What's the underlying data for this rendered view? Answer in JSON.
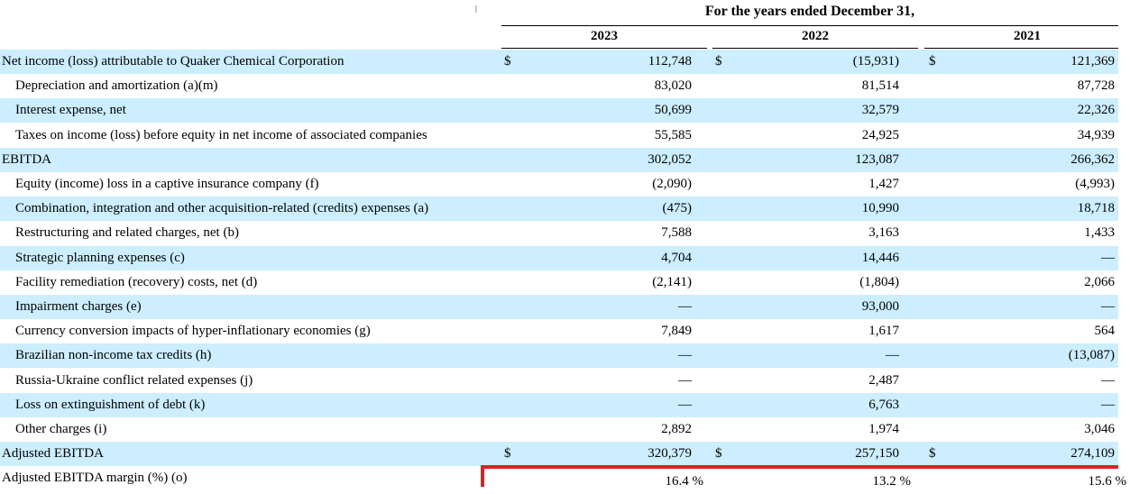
{
  "header": {
    "period_label": "For the years ended December 31,",
    "years": [
      "2023",
      "2022",
      "2021"
    ]
  },
  "rows": [
    {
      "label": "Net income (loss) attributable to Quaker Chemical Corporation",
      "values": [
        "112,748",
        "(15,931)",
        "121,369"
      ],
      "dollar": true,
      "shade": true,
      "indent": false
    },
    {
      "label": "Depreciation and amortization (a)(m)",
      "values": [
        "83,020",
        "81,514",
        "87,728"
      ],
      "dollar": false,
      "shade": false,
      "indent": true
    },
    {
      "label": "Interest expense, net",
      "values": [
        "50,699",
        "32,579",
        "22,326"
      ],
      "dollar": false,
      "shade": true,
      "indent": true
    },
    {
      "label": "Taxes on income (loss) before equity in net income of associated companies",
      "values": [
        "55,585",
        "24,925",
        "34,939"
      ],
      "dollar": false,
      "shade": false,
      "indent": true
    },
    {
      "label": "EBITDA",
      "values": [
        "302,052",
        "123,087",
        "266,362"
      ],
      "dollar": false,
      "shade": true,
      "indent": false
    },
    {
      "label": "Equity (income) loss in a captive insurance company (f)",
      "values": [
        "(2,090)",
        "1,427",
        "(4,993)"
      ],
      "dollar": false,
      "shade": false,
      "indent": true
    },
    {
      "label": "Combination, integration and other acquisition-related (credits) expenses (a)",
      "values": [
        "(475)",
        "10,990",
        "18,718"
      ],
      "dollar": false,
      "shade": true,
      "indent": true
    },
    {
      "label": "Restructuring and related charges, net (b)",
      "values": [
        "7,588",
        "3,163",
        "1,433"
      ],
      "dollar": false,
      "shade": false,
      "indent": true
    },
    {
      "label": "Strategic planning expenses (c)",
      "values": [
        "4,704",
        "14,446",
        "—"
      ],
      "dollar": false,
      "shade": true,
      "indent": true
    },
    {
      "label": "Facility remediation (recovery) costs, net (d)",
      "values": [
        "(2,141)",
        "(1,804)",
        "2,066"
      ],
      "dollar": false,
      "shade": false,
      "indent": true
    },
    {
      "label": "Impairment charges (e)",
      "values": [
        "—",
        "93,000",
        "—"
      ],
      "dollar": false,
      "shade": true,
      "indent": true
    },
    {
      "label": "Currency conversion impacts of hyper-inflationary economies (g)",
      "values": [
        "7,849",
        "1,617",
        "564"
      ],
      "dollar": false,
      "shade": false,
      "indent": true
    },
    {
      "label": "Brazilian non-income tax credits (h)",
      "values": [
        "—",
        "—",
        "(13,087)"
      ],
      "dollar": false,
      "shade": true,
      "indent": true
    },
    {
      "label": "Russia-Ukraine conflict related expenses (j)",
      "values": [
        "—",
        "2,487",
        "—"
      ],
      "dollar": false,
      "shade": false,
      "indent": true
    },
    {
      "label": "Loss on extinguishment of debt (k)",
      "values": [
        "—",
        "6,763",
        "—"
      ],
      "dollar": false,
      "shade": true,
      "indent": true
    },
    {
      "label": "Other charges (i)",
      "values": [
        "2,892",
        "1,974",
        "3,046"
      ],
      "dollar": false,
      "shade": false,
      "indent": true
    },
    {
      "label": "Adjusted EBITDA",
      "values": [
        "320,379",
        "257,150",
        "274,109"
      ],
      "dollar": true,
      "shade": true,
      "indent": false
    },
    {
      "label": "Adjusted EBITDA margin (%) (o)",
      "values": [
        "16.4 %",
        "13.2 %",
        "15.6 %"
      ],
      "dollar": false,
      "shade": false,
      "indent": false
    }
  ],
  "currency_symbol": "$",
  "highlight_color": "#e02020",
  "shade_color": "#cceeff"
}
